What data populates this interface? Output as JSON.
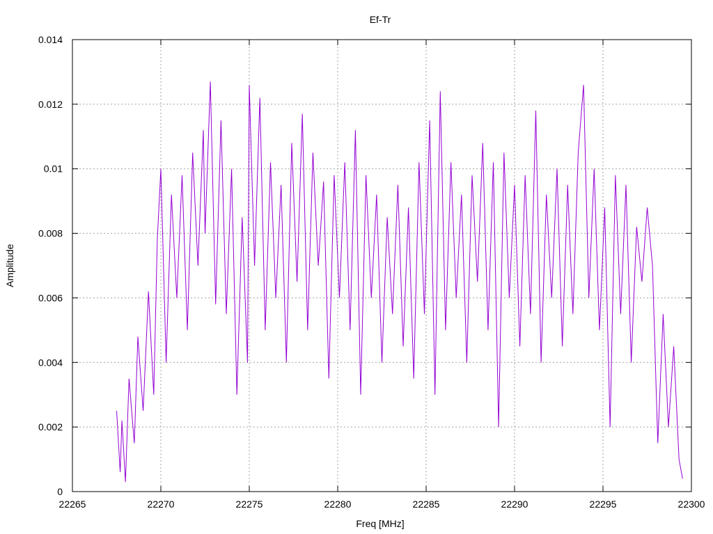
{
  "chart_data": {
    "type": "line",
    "title": "Ef-Tr",
    "xlabel": "Freq [MHz]",
    "ylabel": "Amplitude",
    "xlim": [
      22265,
      22300
    ],
    "ylim": [
      0,
      0.014
    ],
    "xticks": [
      22265,
      22270,
      22275,
      22280,
      22285,
      22290,
      22295,
      22300
    ],
    "yticks": [
      0,
      0.002,
      0.004,
      0.006,
      0.008,
      0.01,
      0.012,
      0.014
    ],
    "xtick_labels": [
      "22265",
      "22270",
      "22275",
      "22280",
      "22285",
      "22290",
      "22295",
      "22300"
    ],
    "ytick_labels": [
      "0",
      "0.002",
      "0.004",
      "0.006",
      "0.008",
      "0.01",
      "0.012",
      "0.014"
    ],
    "grid": true,
    "legend": "none",
    "series": [
      {
        "color": "#9400d3",
        "x": [
          22267.5,
          22267.7,
          22267.8,
          22268.0,
          22268.2,
          22268.5,
          22268.7,
          22269.0,
          22269.3,
          22269.6,
          22269.8,
          22270.0,
          22270.3,
          22270.6,
          22270.9,
          22271.2,
          22271.5,
          22271.8,
          22272.1,
          22272.4,
          22272.5,
          22272.8,
          22273.1,
          22273.4,
          22273.7,
          22274.0,
          22274.3,
          22274.6,
          22274.9,
          22275.0,
          22275.3,
          22275.6,
          22275.9,
          22276.2,
          22276.5,
          22276.8,
          22277.1,
          22277.4,
          22277.7,
          22278.0,
          22278.3,
          22278.6,
          22278.9,
          22279.2,
          22279.5,
          22279.8,
          22280.1,
          22280.4,
          22280.7,
          22281.0,
          22281.3,
          22281.6,
          22281.9,
          22282.2,
          22282.5,
          22282.8,
          22283.1,
          22283.4,
          22283.7,
          22284.0,
          22284.3,
          22284.6,
          22284.9,
          22285.2,
          22285.5,
          22285.8,
          22286.1,
          22286.4,
          22286.7,
          22287.0,
          22287.3,
          22287.6,
          22287.9,
          22288.2,
          22288.5,
          22288.8,
          22289.1,
          22289.4,
          22289.7,
          22290.0,
          22290.3,
          22290.6,
          22290.9,
          22291.2,
          22291.5,
          22291.8,
          22292.1,
          22292.4,
          22292.7,
          22293.0,
          22293.3,
          22293.6,
          22293.9,
          22294.2,
          22294.5,
          22294.8,
          22295.1,
          22295.4,
          22295.7,
          22296.0,
          22296.3,
          22296.6,
          22296.9,
          22297.2,
          22297.5,
          22297.8,
          22298.1,
          22298.4,
          22298.7,
          22299.0,
          22299.3,
          22299.5
        ],
        "y": [
          0.0025,
          0.0006,
          0.0022,
          0.0003,
          0.0035,
          0.0015,
          0.0048,
          0.0025,
          0.0062,
          0.003,
          0.0078,
          0.01,
          0.004,
          0.0092,
          0.006,
          0.0098,
          0.005,
          0.0105,
          0.007,
          0.0112,
          0.008,
          0.0127,
          0.0058,
          0.0115,
          0.0055,
          0.01,
          0.003,
          0.0085,
          0.004,
          0.0126,
          0.007,
          0.0122,
          0.005,
          0.0102,
          0.006,
          0.0095,
          0.004,
          0.0108,
          0.0065,
          0.0117,
          0.005,
          0.0105,
          0.007,
          0.0096,
          0.0035,
          0.0098,
          0.006,
          0.0102,
          0.005,
          0.0112,
          0.003,
          0.0098,
          0.006,
          0.0092,
          0.004,
          0.0085,
          0.0055,
          0.0095,
          0.0045,
          0.0088,
          0.0035,
          0.0102,
          0.0055,
          0.0115,
          0.003,
          0.0124,
          0.005,
          0.0102,
          0.006,
          0.0092,
          0.004,
          0.0098,
          0.0065,
          0.0108,
          0.005,
          0.0102,
          0.002,
          0.0105,
          0.006,
          0.0095,
          0.0045,
          0.0098,
          0.0055,
          0.0118,
          0.004,
          0.0092,
          0.006,
          0.01,
          0.0045,
          0.0095,
          0.0055,
          0.0105,
          0.0126,
          0.006,
          0.01,
          0.005,
          0.0088,
          0.002,
          0.0098,
          0.0055,
          0.0095,
          0.004,
          0.0082,
          0.0065,
          0.0088,
          0.007,
          0.0015,
          0.0055,
          0.002,
          0.0045,
          0.001,
          0.0004
        ]
      }
    ]
  }
}
